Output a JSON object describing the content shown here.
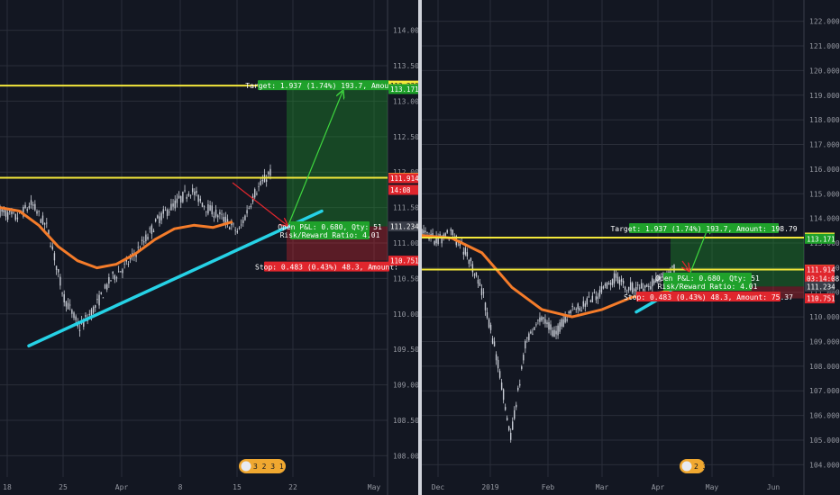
{
  "chart_data": [
    {
      "type": "line",
      "title": "",
      "y_axis": {
        "side": "right",
        "ticks": [
          "114.000",
          "113.500",
          "113.000",
          "112.500",
          "112.000",
          "111.500",
          "111.000",
          "110.500",
          "110.000",
          "109.500",
          "109.000",
          "108.500",
          "108.000"
        ],
        "ylim": [
          107.7,
          114.3
        ]
      },
      "x_axis": {
        "ticks": [
          "18",
          "25",
          "Apr",
          "8",
          "15",
          "22",
          "May"
        ]
      },
      "series": [
        {
          "values": [
            111.45,
            111.35,
            111.55,
            111.2,
            110.25,
            109.8,
            110.1,
            110.5,
            110.7,
            111.0,
            111.35,
            111.55,
            111.75,
            111.5,
            111.35,
            111.15,
            111.7,
            112.0
          ]
        },
        {
          "values": [
            111.5,
            111.45,
            111.25,
            110.95,
            110.75,
            110.65,
            110.7,
            110.85,
            111.05,
            111.2,
            111.25,
            111.22,
            111.3
          ]
        }
      ],
      "horizontal_levels": [
        113.22,
        111.92
      ],
      "trendline": [
        109.55,
        111.45
      ],
      "price_labels": [
        "113.220",
        "113.171",
        "111.920",
        "111.914",
        "14:08",
        "111.234",
        "110.751"
      ],
      "position": {
        "target_label": "Target: 1.937 (1.74%) 193.7, Amount:",
        "open_pl_label": "Open P&L: 0.680, Qty: 51",
        "rr_label": "Risk/Reward Ratio: 4.01",
        "stop_label": "Stop: 0.483 (0.43%) 48.3, Amount:"
      },
      "event_badge": "3 2 3 1"
    },
    {
      "type": "line",
      "title": "",
      "y_axis": {
        "side": "right",
        "ticks": [
          "122.000",
          "121.000",
          "120.000",
          "119.000",
          "118.000",
          "117.000",
          "116.000",
          "115.000",
          "114.000",
          "113.000",
          "112.000",
          "111.000",
          "110.000",
          "109.000",
          "108.000",
          "107.000",
          "106.000",
          "105.000",
          "104.000"
        ],
        "ylim": [
          103.5,
          122.5
        ]
      },
      "x_axis": {
        "ticks": [
          "Dec",
          "2019",
          "Feb",
          "Mar",
          "Apr",
          "May",
          "Jun"
        ]
      },
      "series": [
        {
          "values": [
            113.5,
            113.1,
            113.4,
            112.6,
            111.2,
            108.5,
            105.2,
            108.9,
            110.0,
            109.3,
            110.2,
            110.5,
            111.0,
            111.6,
            111.2,
            111.2,
            111.5,
            112.0
          ]
        },
        {
          "values": [
            113.3,
            113.2,
            112.6,
            111.2,
            110.3,
            110.0,
            110.3,
            110.8,
            111.0,
            111.3
          ]
        }
      ],
      "horizontal_levels": [
        113.22,
        111.92
      ],
      "trendline": [
        110.2,
        111.0
      ],
      "price_labels": [
        "113.220",
        "113.171",
        "111.920",
        "111.914",
        "03:14:08",
        "111.234",
        "110.751"
      ],
      "position": {
        "target_label": "Target: 1.937 (1.74%) 193.7, Amount: 198.79",
        "open_pl_label": "Open P&L: 0.680, Qty: 51",
        "rr_label": "Risk/Reward Ratio: 4.01",
        "stop_label": "Stop: 0.483 (0.43%) 48.3, Amount: 75.37"
      },
      "event_badge": "2 3"
    }
  ],
  "colors": {
    "background": "#131722",
    "grid": "#2a2e39",
    "candles": "#c9cdd6",
    "ma": "#f57c2a",
    "level": "#f4e83b",
    "trendline": "#26d2e6",
    "target": "#1fa12b",
    "stop": "#e0262d",
    "axis_text": "#9598a1"
  }
}
